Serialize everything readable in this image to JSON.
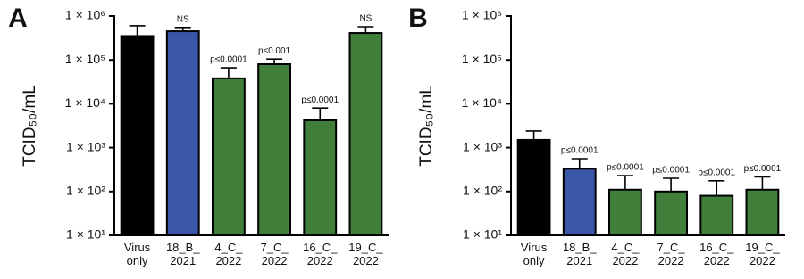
{
  "chart_data": [
    {
      "type": "bar",
      "label": "A",
      "y_label": "TCID₅₀/mL",
      "log_scale": true,
      "categories": [
        "Virus only",
        "18_B_ 2021",
        "4_C_ 2022",
        "7_C_ 2022",
        "16_C_ 2022",
        "19_C_ 2022"
      ],
      "values": [
        350000,
        450000,
        38000,
        80000,
        4200,
        410000
      ],
      "errors": [
        250000,
        100000,
        28000,
        25000,
        3800,
        160000
      ],
      "colors": [
        "#000000",
        "#3b55a9",
        "#3f7f3a",
        "#3f7f3a",
        "#3f7f3a",
        "#3f7f3a"
      ],
      "annotations": [
        null,
        "NS",
        "p≤0.0001",
        "p≤0.001",
        "p≤0.0001",
        "NS"
      ],
      "ylim": [
        10,
        1000000
      ],
      "yticks": [
        {
          "value": 10,
          "label": "1 × 10¹"
        },
        {
          "value": 100,
          "label": "1 × 10²"
        },
        {
          "value": 1000,
          "label": "1 × 10³"
        },
        {
          "value": 10000,
          "label": "1 × 10⁴"
        },
        {
          "value": 100000,
          "label": "1 × 10⁵"
        },
        {
          "value": 1000000,
          "label": "1 × 10⁶"
        }
      ]
    },
    {
      "type": "bar",
      "label": "B",
      "y_label": "TCID₅₀/mL",
      "log_scale": true,
      "categories": [
        "Virus only",
        "18_B_ 2021",
        "4_C_ 2022",
        "7_C_ 2022",
        "16_C_ 2022",
        "19_C_ 2022"
      ],
      "values": [
        1500,
        330,
        110,
        100,
        80,
        110
      ],
      "errors": [
        900,
        230,
        120,
        100,
        95,
        105
      ],
      "colors": [
        "#000000",
        "#3b55a9",
        "#3f7f3a",
        "#3f7f3a",
        "#3f7f3a",
        "#3f7f3a"
      ],
      "annotations": [
        null,
        "p≤0.0001",
        "p≤0.0001",
        "p≤0.0001",
        "p≤0.0001",
        "p≤0.0001"
      ],
      "ylim": [
        10,
        1000000
      ],
      "yticks": [
        {
          "value": 10,
          "label": "1 × 10¹"
        },
        {
          "value": 100,
          "label": "1 × 10²"
        },
        {
          "value": 1000,
          "label": "1 × 10³"
        },
        {
          "value": 10000,
          "label": "1 × 10⁴"
        },
        {
          "value": 100000,
          "label": "1 × 10⁵"
        },
        {
          "value": 1000000,
          "label": "1 × 10⁶"
        }
      ]
    }
  ]
}
